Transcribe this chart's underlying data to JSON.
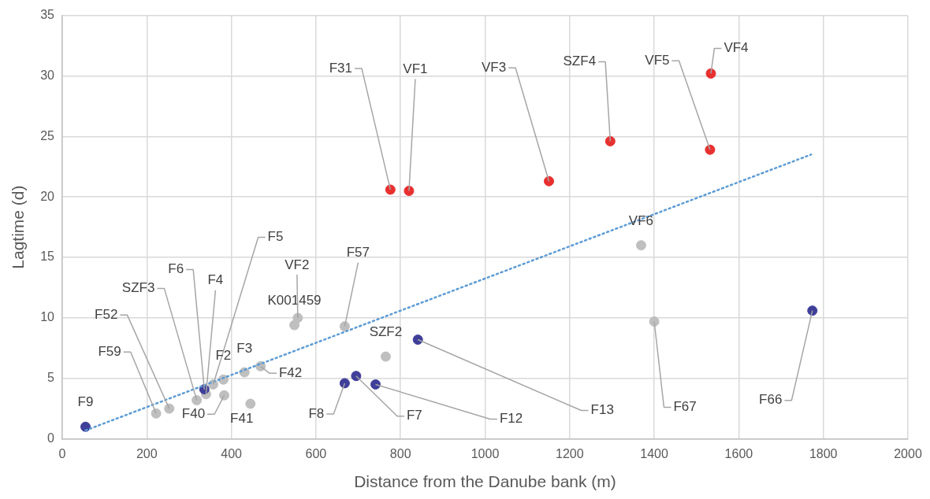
{
  "chart_data": {
    "type": "scatter",
    "xlabel": "Distance from the Danube bank (m)",
    "ylabel": "Lagtime (d)",
    "xlim": [
      0,
      2000
    ],
    "xticks": [
      0,
      200,
      400,
      600,
      800,
      1000,
      1200,
      1400,
      1600,
      1800,
      2000
    ],
    "ylim": [
      0,
      35
    ],
    "yticks": [
      0,
      5,
      10,
      15,
      20,
      25,
      30,
      35
    ],
    "grid": true,
    "marker": "circle",
    "series": [
      {
        "color": "#bfbfbf",
        "x": [
          222,
          253,
          318,
          340,
          357,
          381,
          431,
          469,
          383,
          445,
          549,
          557,
          668,
          765,
          1369,
          1400
        ],
        "values": [
          2.1,
          2.5,
          3.2,
          3.7,
          4.5,
          4.9,
          5.5,
          6.0,
          3.6,
          2.9,
          9.4,
          10.0,
          9.3,
          6.8,
          16.0,
          9.7
        ]
      },
      {
        "color": "#3f3f9a",
        "x": [
          55,
          336,
          668,
          695,
          741,
          841,
          1774
        ],
        "values": [
          1.0,
          4.1,
          4.6,
          5.2,
          4.5,
          8.2,
          10.6
        ]
      },
      {
        "color": "#e8302f",
        "x": [
          776,
          820,
          1151,
          1296,
          1532,
          1534
        ],
        "values": [
          20.6,
          20.5,
          21.3,
          24.6,
          23.9,
          30.2
        ]
      },
      {
        "type": "line",
        "color": "#5b9bd5",
        "line_style": "dotted",
        "marker": "none",
        "x": [
          55,
          1771
        ],
        "values": [
          0.7,
          23.5
        ]
      }
    ],
    "annotations": [
      {
        "text": "F59",
        "x": 222,
        "y": 2.1
      },
      {
        "text": "F52",
        "x": 253,
        "y": 2.5
      },
      {
        "text": "SZF3",
        "x": 318,
        "y": 3.2
      },
      {
        "text": "F4",
        "x": 340,
        "y": 3.7
      },
      {
        "text": "F5",
        "x": 357,
        "y": 4.5
      },
      {
        "text": "F2",
        "x": 381,
        "y": 4.9
      },
      {
        "text": "F3",
        "x": 431,
        "y": 5.5
      },
      {
        "text": "F42",
        "x": 469,
        "y": 6.0
      },
      {
        "text": "F40",
        "x": 383,
        "y": 3.6
      },
      {
        "text": "F41",
        "x": 445,
        "y": 2.9
      },
      {
        "text": "K001459",
        "x": 549,
        "y": 9.4
      },
      {
        "text": "VF2",
        "x": 557,
        "y": 10.0
      },
      {
        "text": "F57",
        "x": 668,
        "y": 9.3
      },
      {
        "text": "SZF2",
        "x": 765,
        "y": 6.8
      },
      {
        "text": "VF6",
        "x": 1369,
        "y": 16.0
      },
      {
        "text": "F67",
        "x": 1400,
        "y": 9.7
      },
      {
        "text": "F9",
        "x": 55,
        "y": 1.0
      },
      {
        "text": "F6",
        "x": 336,
        "y": 4.1
      },
      {
        "text": "F8",
        "x": 668,
        "y": 4.6
      },
      {
        "text": "F7",
        "x": 695,
        "y": 5.2
      },
      {
        "text": "F12",
        "x": 741,
        "y": 4.5
      },
      {
        "text": "F13",
        "x": 841,
        "y": 8.2
      },
      {
        "text": "F66",
        "x": 1774,
        "y": 10.6
      },
      {
        "text": "F31",
        "x": 776,
        "y": 20.6
      },
      {
        "text": "VF1",
        "x": 820,
        "y": 20.5
      },
      {
        "text": "VF3",
        "x": 1151,
        "y": 21.3
      },
      {
        "text": "SZF4",
        "x": 1296,
        "y": 24.6
      },
      {
        "text": "VF5",
        "x": 1532,
        "y": 23.9
      },
      {
        "text": "VF4",
        "x": 1534,
        "y": 30.2
      }
    ]
  }
}
